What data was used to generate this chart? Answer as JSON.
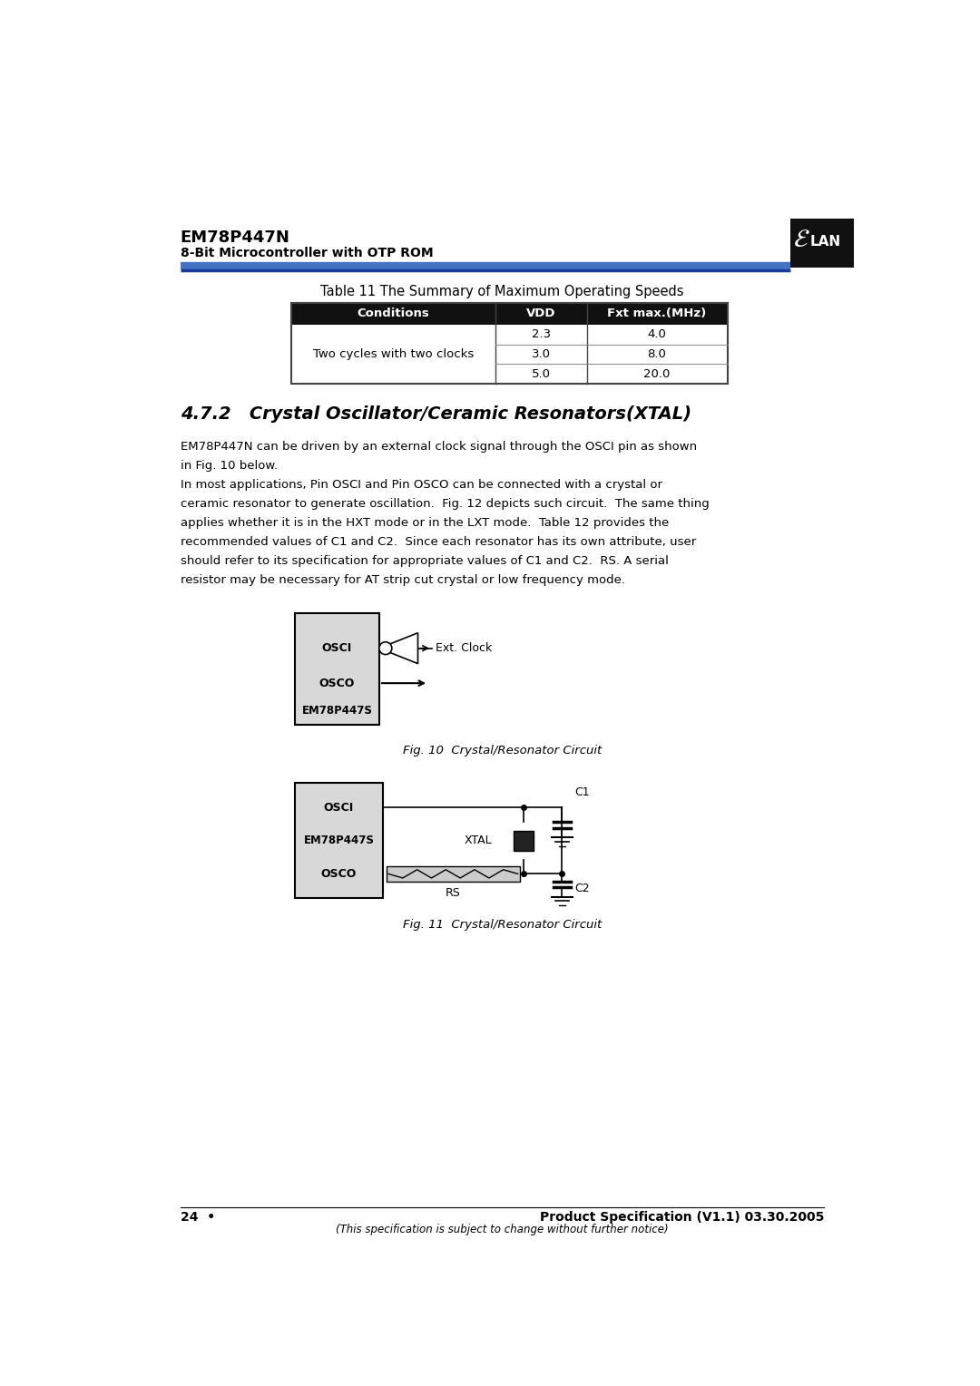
{
  "page_width": 10.8,
  "page_height": 15.28,
  "bg_color": "#ffffff",
  "header_title": "EM78P447N",
  "header_subtitle": "8-Bit Microcontroller with OTP ROM",
  "table_title": "Table 11 The Summary of Maximum Operating Speeds",
  "table_headers": [
    "Conditions",
    "VDD",
    "Fxt max.(MHz)"
  ],
  "table_header_bg": "#111111",
  "table_data": [
    [
      "",
      "2.3",
      "4.0"
    ],
    [
      "Two cycles with two clocks",
      "3.0",
      "8.0"
    ],
    [
      "",
      "5.0",
      "20.0"
    ]
  ],
  "section_title": "4.7.2   Crystal Oscillator/Ceramic Resonators(XTAL)",
  "para1": "EM78P447N can be driven by an external clock signal through the OSCI pin as shown\nin Fig. 10 below.",
  "para2": "In most applications, Pin OSCI and Pin OSCO can be connected with a crystal or\nceramic resonator to generate oscillation.  Fig. 12 depicts such circuit.  The same thing\napplies whether it is in the HXT mode or in the LXT mode.  Table 12 provides the\nrecommended values of C1 and C2.  Since each resonator has its own attribute, user\nshould refer to its specification for appropriate values of C1 and C2.  RS. A serial\nresistor may be necessary for AT strip cut crystal or low frequency mode.",
  "fig10_caption": "Fig. 10  Crystal/Resonator Circuit",
  "fig11_caption": "Fig. 11  Crystal/Resonator Circuit",
  "footer_page": "24  •",
  "footer_right": "Product Specification (V1.1) 03.30.2005",
  "footer_italic": "(This specification is subject to change without further notice)"
}
